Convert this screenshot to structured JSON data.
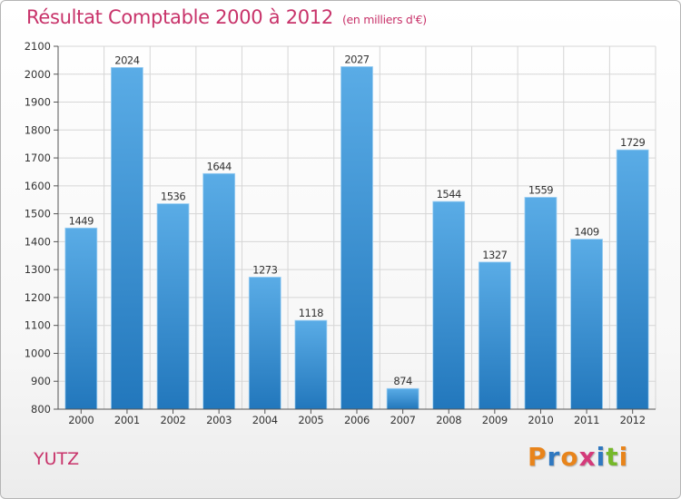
{
  "title": {
    "main": "Résultat Comptable 2000 à 2012",
    "subtitle": "(en milliers d'€)"
  },
  "commune": "YUTZ",
  "logo": {
    "text": "Proxiti",
    "letters": [
      {
        "char": "P",
        "color": "#e8841b"
      },
      {
        "char": "r",
        "color": "#2f78c0"
      },
      {
        "char": "o",
        "color": "#e8841b"
      },
      {
        "char": "x",
        "color": "#d43a7a"
      },
      {
        "char": "i",
        "color": "#2f78c0"
      },
      {
        "char": "t",
        "color": "#76b82a"
      },
      {
        "char": "i",
        "color": "#e8841b"
      }
    ]
  },
  "colors": {
    "title": "#c8336a",
    "bar_top": "#5aace6",
    "bar_bottom": "#2277bc",
    "grid": "#d6d6d6",
    "axis": "#555555"
  },
  "chart_data": {
    "type": "bar",
    "title": "Résultat Comptable 2000 à 2012",
    "subtitle": "(en milliers d'€)",
    "xlabel": "",
    "ylabel": "",
    "categories": [
      "2000",
      "2001",
      "2002",
      "2003",
      "2004",
      "2005",
      "2006",
      "2007",
      "2008",
      "2009",
      "2010",
      "2011",
      "2012"
    ],
    "values": [
      1449,
      2024,
      1536,
      1644,
      1273,
      1118,
      2027,
      874,
      1544,
      1327,
      1559,
      1409,
      1729
    ],
    "ylim": [
      800,
      2100
    ],
    "yticks": [
      800,
      900,
      1000,
      1100,
      1200,
      1300,
      1400,
      1500,
      1600,
      1700,
      1800,
      1900,
      2000,
      2100
    ],
    "grid": true,
    "legend": "none"
  }
}
